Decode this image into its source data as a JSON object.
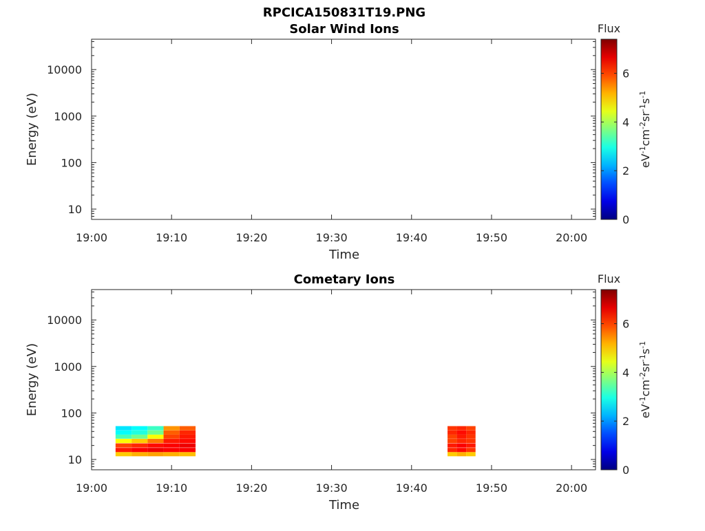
{
  "figure": {
    "title": "RPCICA150831T19.PNG"
  },
  "chart_data": [
    {
      "type": "heatmap",
      "title": "Solar Wind Ions",
      "xlabel": "Time",
      "ylabel": "Energy (eV)",
      "x_ticks": [
        "19:00",
        "19:10",
        "19:20",
        "19:30",
        "19:40",
        "19:50",
        "20:00"
      ],
      "xlim": [
        "19:00",
        "20:03"
      ],
      "y_scale": "log",
      "y_ticks": [
        "10",
        "100",
        "1000",
        "10000"
      ],
      "ylim": [
        6,
        45000
      ],
      "colorbar": {
        "label": "Flux",
        "unit": "eV-1cm-2sr-1s-1",
        "ticks": [
          "0",
          "2",
          "4",
          "6"
        ],
        "range": [
          0,
          7.4
        ],
        "colormap": "jet"
      },
      "cells": []
    },
    {
      "type": "heatmap",
      "title": "Cometary Ions",
      "xlabel": "Time",
      "ylabel": "Energy (eV)",
      "x_ticks": [
        "19:00",
        "19:10",
        "19:20",
        "19:30",
        "19:40",
        "19:50",
        "20:00"
      ],
      "xlim": [
        "19:00",
        "20:03"
      ],
      "y_scale": "log",
      "y_ticks": [
        "10",
        "100",
        "1000",
        "10000"
      ],
      "ylim": [
        6,
        45000
      ],
      "colorbar": {
        "label": "Flux",
        "unit": "eV-1cm-2sr-1s-1",
        "ticks": [
          "0",
          "2",
          "4",
          "6"
        ],
        "range": [
          0,
          7.4
        ],
        "colormap": "jet"
      },
      "energy_bins": [
        13,
        16,
        20,
        25,
        31,
        38,
        47
      ],
      "blocks": [
        {
          "start": "19:03",
          "end": "19:13",
          "values": [
            [
              5.0,
              6.3,
              6.0,
              4.6,
              3.3,
              2.8,
              2.6
            ],
            [
              5.2,
              6.5,
              6.2,
              5.0,
              3.6,
              3.0,
              2.8
            ],
            [
              5.3,
              6.6,
              6.4,
              5.6,
              4.6,
              3.6,
              3.2
            ],
            [
              5.2,
              6.5,
              6.5,
              6.3,
              6.0,
              5.8,
              5.4
            ],
            [
              5.1,
              6.5,
              6.6,
              6.4,
              6.3,
              6.2,
              5.8
            ]
          ]
        },
        {
          "start": "19:44:30",
          "end": "19:48",
          "values": [
            [
              5.0,
              6.2,
              6.3,
              6.0,
              6.0,
              6.2,
              6.1
            ],
            [
              5.2,
              6.4,
              6.5,
              6.2,
              6.3,
              6.4,
              6.2
            ],
            [
              5.0,
              6.1,
              6.3,
              6.1,
              6.1,
              6.2,
              6.0
            ]
          ]
        }
      ]
    }
  ]
}
